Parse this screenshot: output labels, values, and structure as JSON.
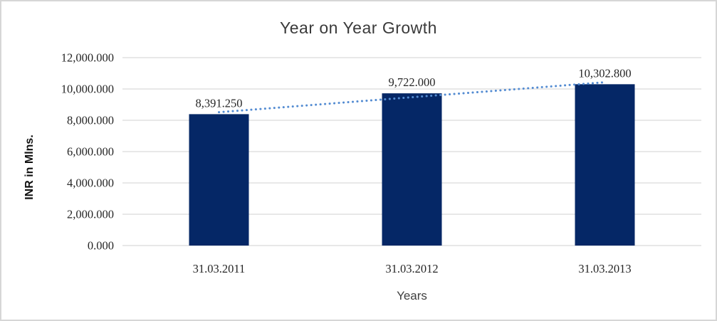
{
  "chart_data": {
    "type": "bar",
    "title": "Year on Year Growth",
    "xlabel": "Years",
    "ylabel": "INR in Mlns.",
    "categories": [
      "31.03.2011",
      "31.03.2012",
      "31.03.2013"
    ],
    "values": [
      8391.25,
      9722.0,
      10302.8
    ],
    "data_labels": [
      "8,391.250",
      "9,722.000",
      "10,302.800"
    ],
    "ylim": [
      0,
      12000
    ],
    "ytick_step": 2000,
    "ytick_labels": [
      "0.000",
      "2,000.000",
      "4,000.000",
      "6,000.000",
      "8,000.000",
      "10,000.000",
      "12,000.000"
    ],
    "grid": true,
    "legend": false,
    "trendline": {
      "type": "linear",
      "style": "dotted"
    },
    "colors": {
      "bar": "#052766",
      "trendline": "#548cd2",
      "gridline": "#d9d9d9",
      "title_text": "#3a3a3a",
      "label_text": "#262626",
      "frame_border": "#d6d6d6"
    }
  }
}
